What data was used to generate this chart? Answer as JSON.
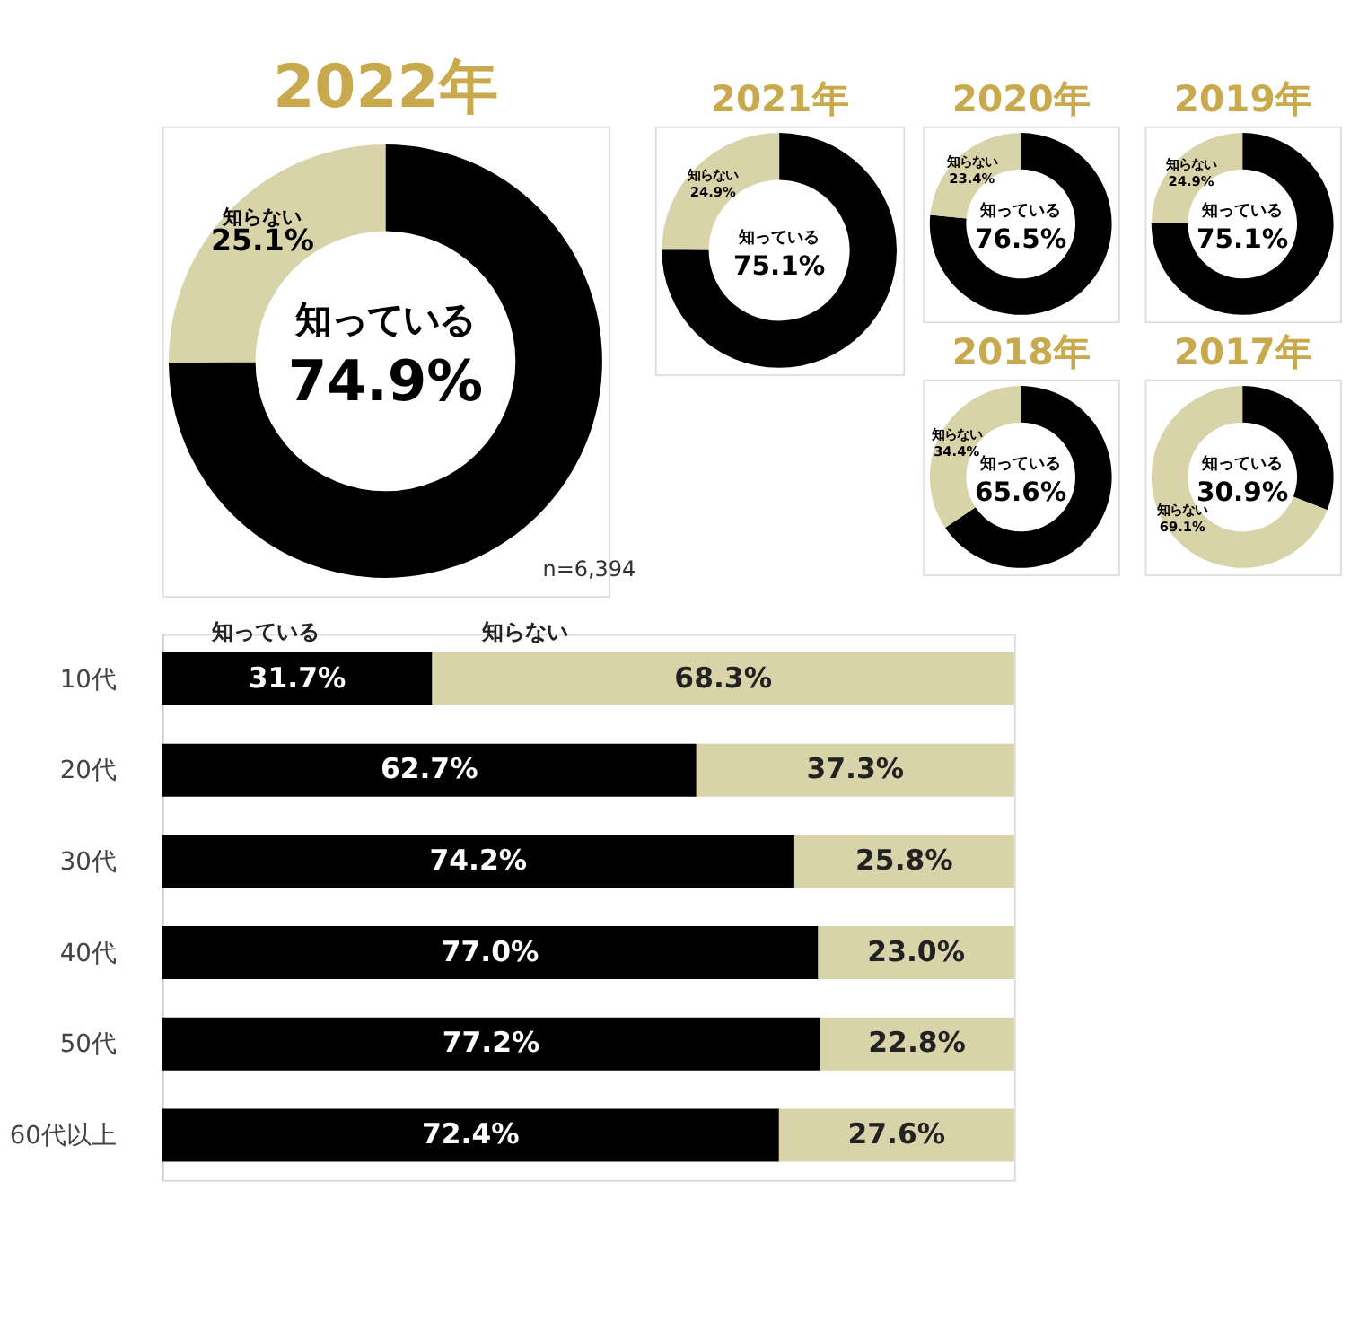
{
  "chart_data": [
    {
      "type": "donut",
      "title": "2022年",
      "categories": [
        "知っている",
        "知らない"
      ],
      "values": [
        74.9,
        25.1
      ],
      "value_labels": [
        "74.9%",
        "25.1%"
      ],
      "colors": [
        "#000000",
        "#d9d3aa"
      ],
      "annotations": [
        "n=6,394"
      ]
    },
    {
      "type": "donut",
      "title": "2021年",
      "categories": [
        "知っている",
        "知らない"
      ],
      "values": [
        75.1,
        24.9
      ],
      "value_labels": [
        "75.1%",
        "24.9%"
      ],
      "colors": [
        "#000000",
        "#d9d3aa"
      ]
    },
    {
      "type": "donut",
      "title": "2020年",
      "categories": [
        "知っている",
        "知らない"
      ],
      "values": [
        76.5,
        23.4
      ],
      "value_labels": [
        "76.5%",
        "23.4%"
      ],
      "colors": [
        "#000000",
        "#d9d3aa"
      ]
    },
    {
      "type": "donut",
      "title": "2019年",
      "categories": [
        "知っている",
        "知らない"
      ],
      "values": [
        75.1,
        24.9
      ],
      "value_labels": [
        "75.1%",
        "24.9%"
      ],
      "colors": [
        "#000000",
        "#d9d3aa"
      ]
    },
    {
      "type": "donut",
      "title": "2018年",
      "categories": [
        "知っている",
        "知らない"
      ],
      "values": [
        65.6,
        34.4
      ],
      "value_labels": [
        "65.6%",
        "34.4%"
      ],
      "colors": [
        "#000000",
        "#d9d3aa"
      ]
    },
    {
      "type": "donut",
      "title": "2017年",
      "categories": [
        "知っている",
        "知らない"
      ],
      "values": [
        30.9,
        69.1
      ],
      "value_labels": [
        "30.9%",
        "69.1%"
      ],
      "colors": [
        "#000000",
        "#d9d3aa"
      ]
    },
    {
      "type": "bar",
      "orientation": "horizontal",
      "stacked": true,
      "categories": [
        "10代",
        "20代",
        "30代",
        "40代",
        "50代",
        "60代以上"
      ],
      "xlim": [
        0,
        100
      ],
      "tick_labels": "y",
      "series": [
        {
          "name": "知っている",
          "color": "#000000",
          "values": [
            31.7,
            62.7,
            74.2,
            77.0,
            77.2,
            72.4
          ],
          "value_labels": [
            "31.7%",
            "62.7%",
            "74.2%",
            "77.0%",
            "77.2%",
            "72.4%"
          ]
        },
        {
          "name": "知らない",
          "color": "#d9d3aa",
          "values": [
            68.3,
            37.3,
            25.8,
            23.0,
            22.8,
            27.6
          ],
          "value_labels": [
            "68.3%",
            "37.3%",
            "25.8%",
            "23.0%",
            "22.8%",
            "27.6%"
          ]
        }
      ]
    }
  ]
}
